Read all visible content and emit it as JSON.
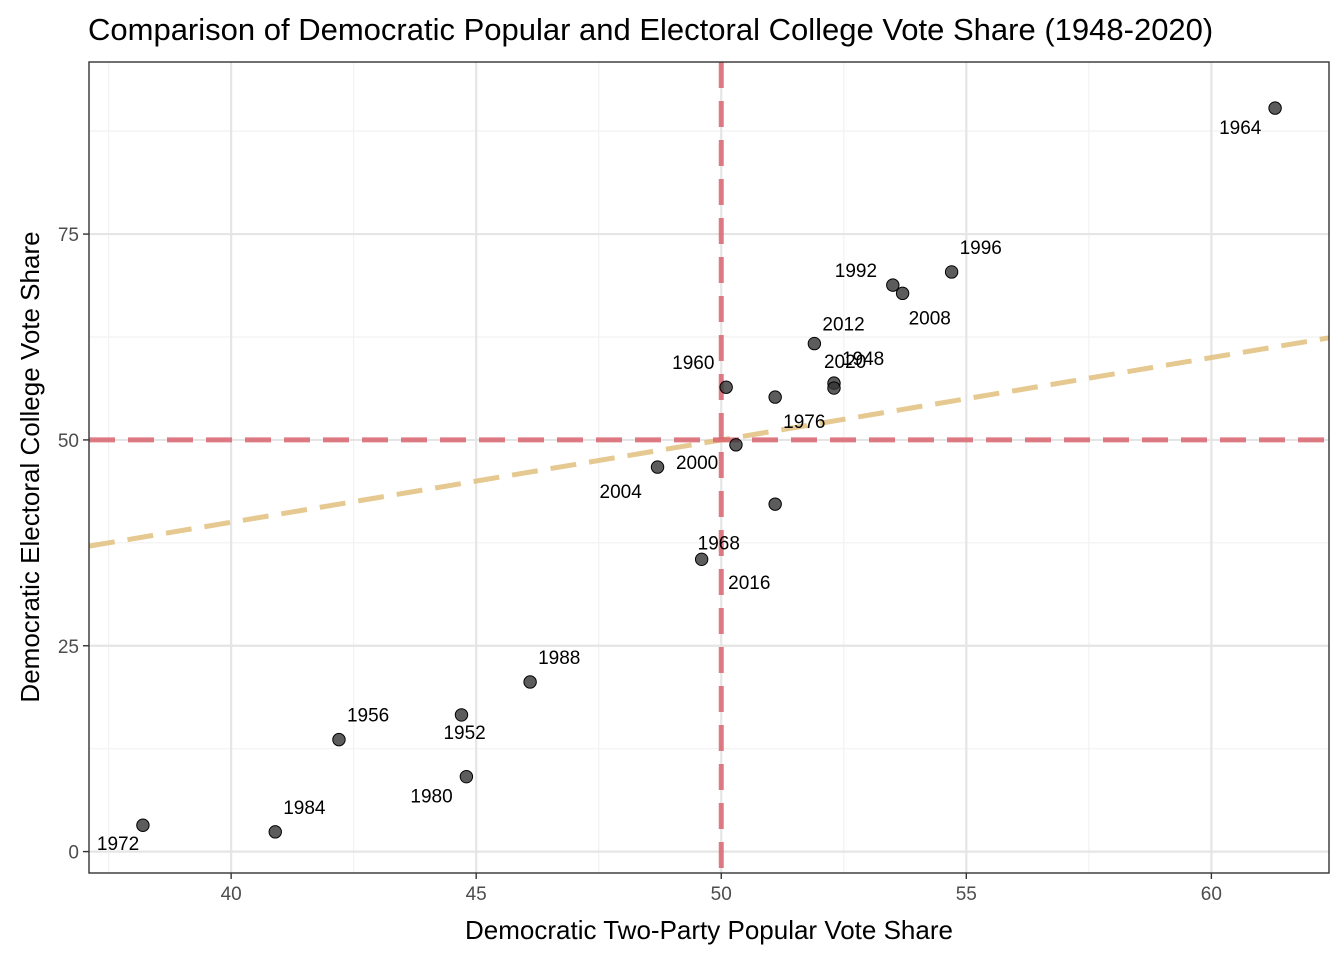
{
  "chart_data": {
    "type": "scatter",
    "title": "Comparison of Democratic Popular and Electoral College Vote Share (1948-2020)",
    "xlabel": "Democratic Two-Party Popular Vote Share",
    "ylabel": "Democratic Electoral College Vote Share",
    "xlim": [
      37.1,
      62.4
    ],
    "ylim": [
      -2.6,
      95.9
    ],
    "x_ticks": [
      40,
      45,
      50,
      55,
      60
    ],
    "y_ticks": [
      0,
      25,
      50,
      75
    ],
    "x_tick_labels": [
      "40",
      "45",
      "50",
      "55",
      "60"
    ],
    "y_tick_labels": [
      "0",
      "25",
      "50",
      "75"
    ],
    "grid": true,
    "theme": "bw",
    "points": [
      {
        "label": "1948",
        "x": 52.3,
        "y": 56.9
      },
      {
        "label": "1952",
        "x": 44.7,
        "y": 16.6
      },
      {
        "label": "1956",
        "x": 42.2,
        "y": 13.6
      },
      {
        "label": "1960",
        "x": 50.1,
        "y": 56.4
      },
      {
        "label": "1964",
        "x": 61.3,
        "y": 90.3
      },
      {
        "label": "1968",
        "x": 49.6,
        "y": 35.5
      },
      {
        "label": "1972",
        "x": 38.2,
        "y": 3.2
      },
      {
        "label": "1976",
        "x": 51.1,
        "y": 55.2
      },
      {
        "label": "1980",
        "x": 44.8,
        "y": 9.1
      },
      {
        "label": "1984",
        "x": 40.9,
        "y": 2.4
      },
      {
        "label": "1988",
        "x": 46.1,
        "y": 20.6
      },
      {
        "label": "1992",
        "x": 53.5,
        "y": 68.8
      },
      {
        "label": "1996",
        "x": 54.7,
        "y": 70.4
      },
      {
        "label": "2000",
        "x": 50.3,
        "y": 49.4
      },
      {
        "label": "2004",
        "x": 48.7,
        "y": 46.7
      },
      {
        "label": "2008",
        "x": 53.7,
        "y": 67.8
      },
      {
        "label": "2012",
        "x": 51.9,
        "y": 61.7
      },
      {
        "label": "2016",
        "x": 51.1,
        "y": 42.2
      },
      {
        "label": "2020",
        "x": 52.3,
        "y": 56.3
      }
    ],
    "reference_lines": [
      {
        "orientation": "horizontal",
        "value": 50,
        "color": "#D9646E",
        "style": "dashed"
      },
      {
        "orientation": "vertical",
        "value": 50,
        "color": "#D9646E",
        "style": "dashed"
      }
    ],
    "trend_line": {
      "x1": 37.1,
      "y1": 37.1,
      "x2": 62.4,
      "y2": 62.4,
      "color": "#E0C07E",
      "style": "dashed"
    },
    "colors": {
      "point_fill": "#333333",
      "point_stroke": "#000000",
      "panel_border": "#333333",
      "grid_major": "#e5e5e5",
      "grid_minor": "#f2f2f2",
      "tick_text": "#4d4d4d"
    }
  }
}
